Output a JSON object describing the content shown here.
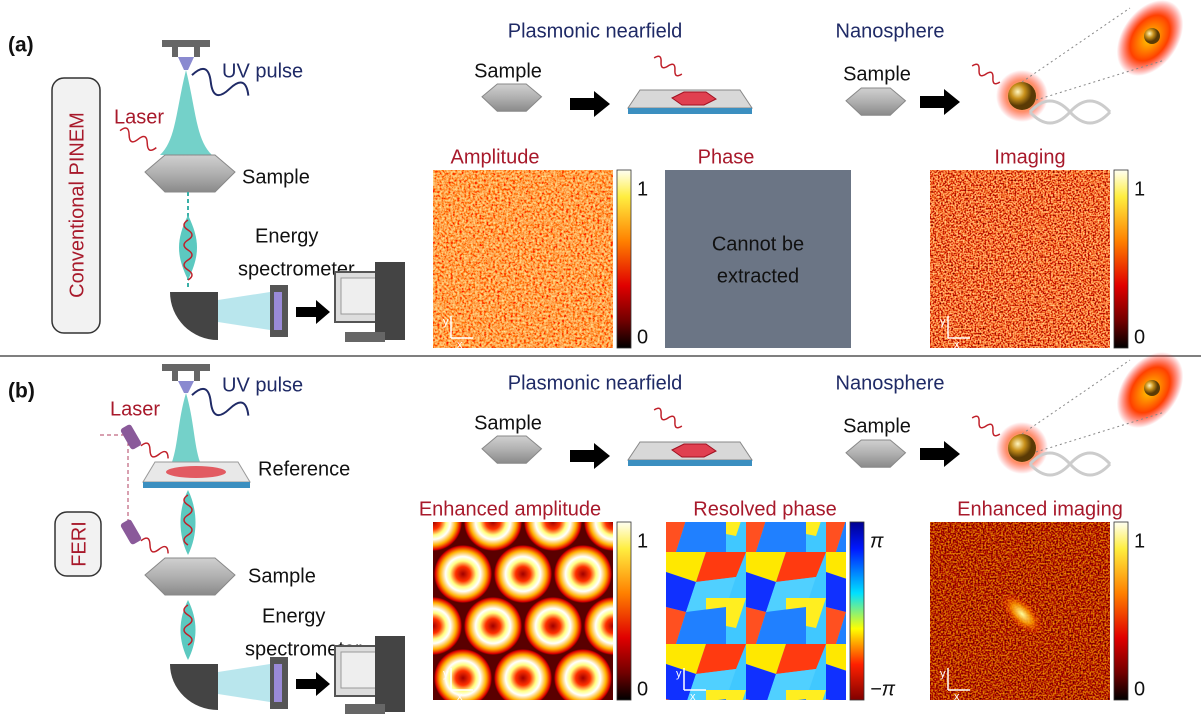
{
  "panels": [
    {
      "label": "(a)",
      "method": "Conventional PINEM",
      "setup": {
        "pulse": "UV pulse",
        "laser": "Laser",
        "sample": "Sample",
        "spectrometer": [
          "Energy",
          "spectrometer"
        ]
      },
      "examples": [
        {
          "title": "Plasmonic nearfield",
          "sample": "Sample"
        },
        {
          "title": "Nanosphere",
          "sample": "Sample"
        }
      ],
      "maps": [
        {
          "title": "Amplitude",
          "colorbar": [
            "1",
            "0"
          ],
          "axes": [
            "y",
            "x"
          ]
        },
        {
          "title": "Phase",
          "message": [
            "Cannot be",
            "extracted"
          ]
        },
        {
          "title": "Imaging",
          "colorbar": [
            "1",
            "0"
          ],
          "axes": [
            "y",
            "x"
          ]
        }
      ]
    },
    {
      "label": "(b)",
      "method": "FERI",
      "setup": {
        "pulse": "UV pulse",
        "laser": "Laser",
        "reference": "Reference",
        "sample": "Sample",
        "spectrometer": [
          "Energy",
          "spectrometer"
        ]
      },
      "examples": [
        {
          "title": "Plasmonic nearfield",
          "sample": "Sample"
        },
        {
          "title": "Nanosphere",
          "sample": "Sample"
        }
      ],
      "maps": [
        {
          "title": "Enhanced amplitude",
          "colorbar": [
            "1",
            "0"
          ],
          "axes": [
            "y",
            "x"
          ]
        },
        {
          "title": "Resolved phase",
          "colorbar": [
            "π",
            "−π"
          ],
          "axes": [
            "y",
            "x"
          ]
        },
        {
          "title": "Enhanced imaging",
          "colorbar": [
            "1",
            "0"
          ],
          "axes": [
            "y",
            "x"
          ]
        }
      ]
    }
  ]
}
